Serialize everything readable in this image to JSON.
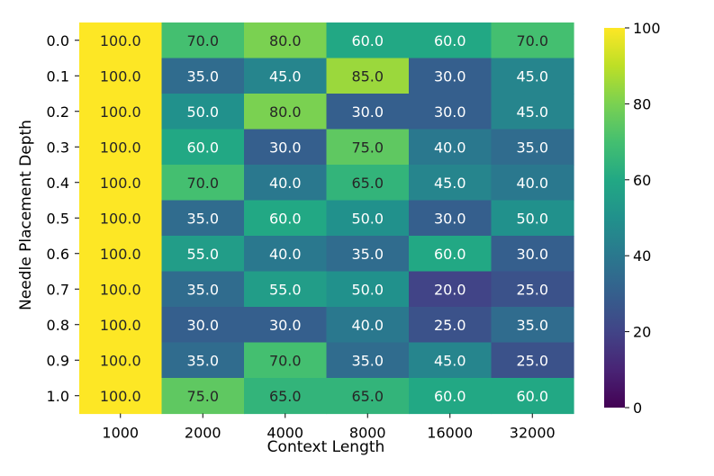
{
  "chart_data": {
    "type": "heatmap",
    "title": "",
    "xlabel": "Context Length",
    "ylabel": "Needle Placement Depth",
    "x_categories": [
      "1000",
      "2000",
      "4000",
      "8000",
      "16000",
      "32000"
    ],
    "y_categories": [
      "0.0",
      "0.1",
      "0.2",
      "0.3",
      "0.4",
      "0.5",
      "0.6",
      "0.7",
      "0.8",
      "0.9",
      "1.0"
    ],
    "values": [
      [
        100,
        70,
        80,
        60,
        60,
        70
      ],
      [
        100,
        35,
        45,
        85,
        30,
        45
      ],
      [
        100,
        50,
        80,
        30,
        30,
        45
      ],
      [
        100,
        60,
        30,
        75,
        40,
        35
      ],
      [
        100,
        70,
        40,
        65,
        45,
        40
      ],
      [
        100,
        35,
        60,
        50,
        30,
        50
      ],
      [
        100,
        55,
        40,
        35,
        60,
        30
      ],
      [
        100,
        35,
        55,
        50,
        20,
        25
      ],
      [
        100,
        30,
        30,
        40,
        25,
        35
      ],
      [
        100,
        35,
        70,
        35,
        45,
        25
      ],
      [
        100,
        75,
        65,
        65,
        60,
        60
      ]
    ],
    "value_format": "one_decimal",
    "colormap": "viridis",
    "color_range": [
      0,
      100
    ],
    "colorbar_ticks": [
      "0",
      "20",
      "40",
      "60",
      "80",
      "100"
    ],
    "grid": false
  }
}
